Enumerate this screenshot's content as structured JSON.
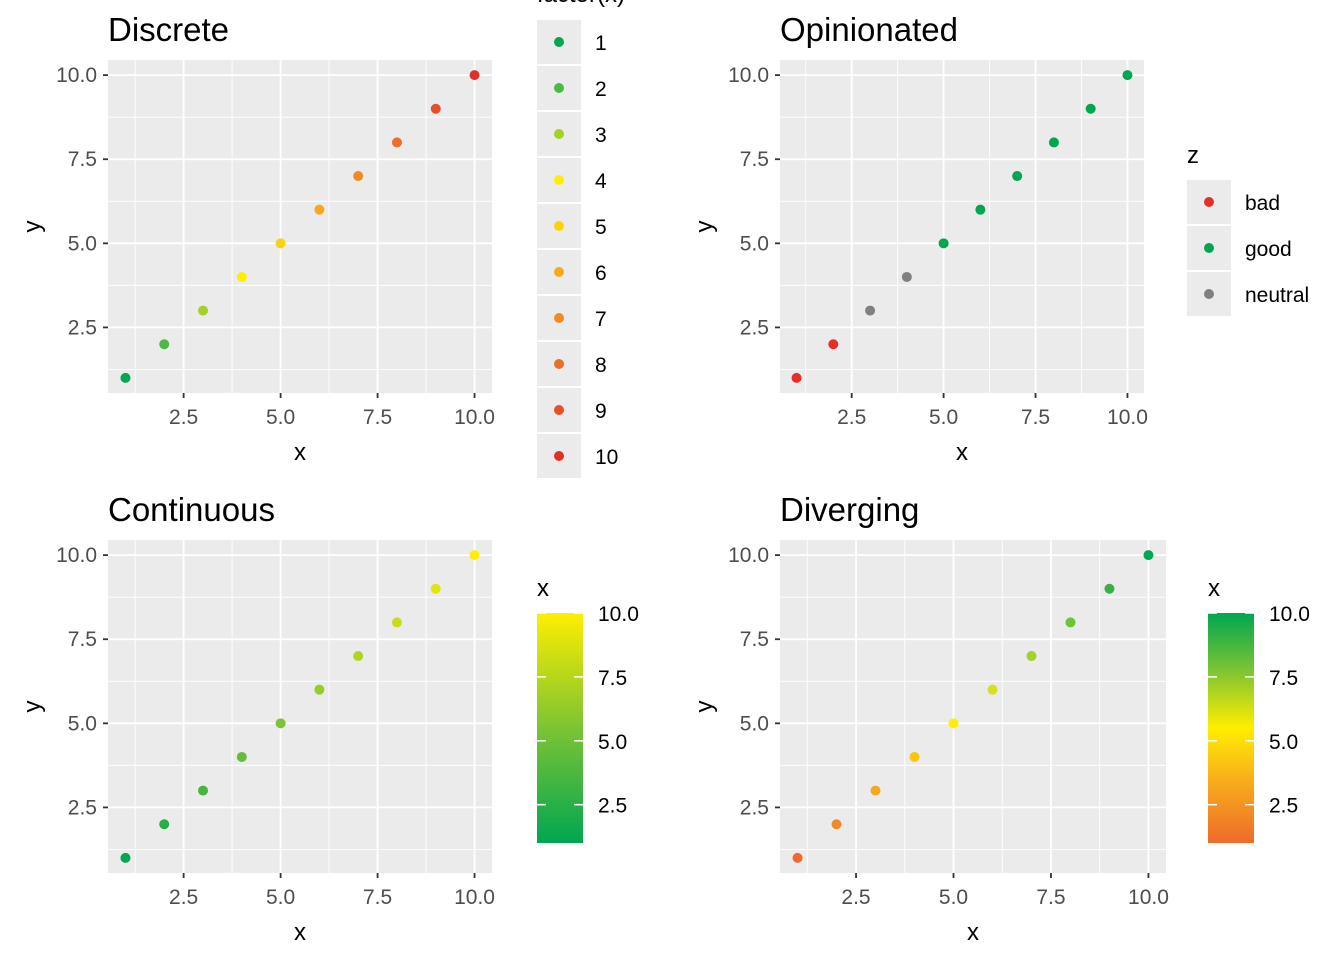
{
  "chart_data": [
    {
      "type": "scatter",
      "title": "Discrete",
      "xlabel": "x",
      "ylabel": "y",
      "x": [
        1,
        2,
        3,
        4,
        5,
        6,
        7,
        8,
        9,
        10
      ],
      "y": [
        1,
        2,
        3,
        4,
        5,
        6,
        7,
        8,
        9,
        10
      ],
      "xlim": [
        0.55,
        10.45
      ],
      "ylim": [
        0.55,
        10.45
      ],
      "xticks": [
        2.5,
        5.0,
        7.5,
        10.0
      ],
      "xtick_labels": [
        "2.5",
        "5.0",
        "7.5",
        "10.0"
      ],
      "yticks": [
        2.5,
        5.0,
        7.5,
        10.0
      ],
      "ytick_labels": [
        "2.5",
        "5.0",
        "7.5",
        "10.0"
      ],
      "colors": [
        "#00a651",
        "#4cb846",
        "#a3d12a",
        "#ffee00",
        "#fcd30b",
        "#f7a81d",
        "#f08a26",
        "#ed6d2d",
        "#e94e2c",
        "#e22f27"
      ],
      "legend": {
        "type": "discrete",
        "title": "factor(x)",
        "labels": [
          "1",
          "2",
          "3",
          "4",
          "5",
          "6",
          "7",
          "8",
          "9",
          "10"
        ],
        "colors": [
          "#00a651",
          "#4cb846",
          "#a3d12a",
          "#ffee00",
          "#fcd30b",
          "#f7a81d",
          "#f08a26",
          "#ed6d2d",
          "#e94e2c",
          "#e22f27"
        ],
        "position": "right"
      },
      "grid": true
    },
    {
      "type": "scatter",
      "title": "Opinionated",
      "xlabel": "x",
      "ylabel": "y",
      "x": [
        1,
        2,
        3,
        4,
        5,
        6,
        7,
        8,
        9,
        10
      ],
      "y": [
        1,
        2,
        3,
        4,
        5,
        6,
        7,
        8,
        9,
        10
      ],
      "z": [
        "bad",
        "bad",
        "neutral",
        "neutral",
        "good",
        "good",
        "good",
        "good",
        "good",
        "good"
      ],
      "xlim": [
        0.55,
        10.45
      ],
      "ylim": [
        0.55,
        10.45
      ],
      "xticks": [
        2.5,
        5.0,
        7.5,
        10.0
      ],
      "xtick_labels": [
        "2.5",
        "5.0",
        "7.5",
        "10.0"
      ],
      "yticks": [
        2.5,
        5.0,
        7.5,
        10.0
      ],
      "ytick_labels": [
        "2.5",
        "5.0",
        "7.5",
        "10.0"
      ],
      "colors": [
        "#e63027",
        "#e63027",
        "#808080",
        "#808080",
        "#00a651",
        "#00a651",
        "#00a651",
        "#00a651",
        "#00a651",
        "#00a651"
      ],
      "legend": {
        "type": "discrete",
        "title": "z",
        "labels": [
          "bad",
          "good",
          "neutral"
        ],
        "colors": [
          "#e63027",
          "#00a651",
          "#808080"
        ],
        "position": "right"
      },
      "grid": true
    },
    {
      "type": "scatter",
      "title": "Continuous",
      "xlabel": "x",
      "ylabel": "y",
      "x": [
        1,
        2,
        3,
        4,
        5,
        6,
        7,
        8,
        9,
        10
      ],
      "y": [
        1,
        2,
        3,
        4,
        5,
        6,
        7,
        8,
        9,
        10
      ],
      "xlim": [
        0.55,
        10.45
      ],
      "ylim": [
        0.55,
        10.45
      ],
      "xticks": [
        2.5,
        5.0,
        7.5,
        10.0
      ],
      "xtick_labels": [
        "2.5",
        "5.0",
        "7.5",
        "10.0"
      ],
      "yticks": [
        2.5,
        5.0,
        7.5,
        10.0
      ],
      "ytick_labels": [
        "2.5",
        "5.0",
        "7.5",
        "10.0"
      ],
      "colors": [
        "#00a651",
        "#26ae47",
        "#47b63f",
        "#63bd39",
        "#7cc433",
        "#96cc2c",
        "#b0d424",
        "#c9dc1c",
        "#e2e410",
        "#ffee00"
      ],
      "legend": {
        "type": "continuous",
        "title": "x",
        "min": 1,
        "max": 10,
        "stops": [
          "#00a651",
          "#7cc433",
          "#ffee00"
        ],
        "tick_values": [
          2.5,
          5.0,
          7.5,
          10.0
        ],
        "tick_labels": [
          "2.5",
          "5.0",
          "7.5",
          "10.0"
        ],
        "position": "right"
      },
      "grid": true
    },
    {
      "type": "scatter",
      "title": "Diverging",
      "xlabel": "x",
      "ylabel": "y",
      "x": [
        1,
        2,
        3,
        4,
        5,
        6,
        7,
        8,
        9,
        10
      ],
      "y": [
        1,
        2,
        3,
        4,
        5,
        6,
        7,
        8,
        9,
        10
      ],
      "xlim": [
        0.55,
        10.45
      ],
      "ylim": [
        0.55,
        10.45
      ],
      "xticks": [
        2.5,
        5.0,
        7.5,
        10.0
      ],
      "xtick_labels": [
        "2.5",
        "5.0",
        "7.5",
        "10.0"
      ],
      "yticks": [
        2.5,
        5.0,
        7.5,
        10.0
      ],
      "ytick_labels": [
        "2.5",
        "5.0",
        "7.5",
        "10.0"
      ],
      "colors": [
        "#ef6a2a",
        "#f3882a",
        "#f7a81d",
        "#fcc60e",
        "#ffee00",
        "#d6e020",
        "#a3d12a",
        "#6fc23d",
        "#38b047",
        "#00a651"
      ],
      "legend": {
        "type": "continuous",
        "title": "x",
        "min": 1,
        "max": 10,
        "stops": [
          "#ef6a2a",
          "#f7a81d",
          "#ffee00",
          "#7cc433",
          "#00a651"
        ],
        "tick_values": [
          2.5,
          5.0,
          7.5,
          10.0
        ],
        "tick_labels": [
          "2.5",
          "5.0",
          "7.5",
          "10.0"
        ],
        "position": "right"
      },
      "grid": true
    }
  ]
}
